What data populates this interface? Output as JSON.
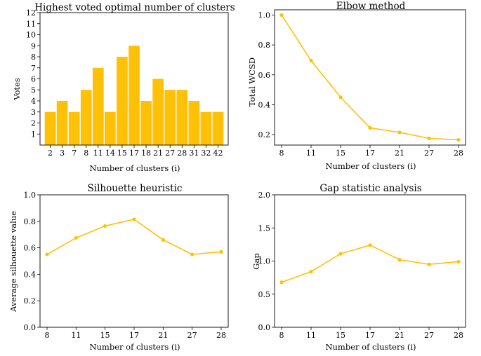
{
  "colors": {
    "accent": "#FFC107",
    "axis": "#000000",
    "background": "#ffffff"
  },
  "chart_data": [
    {
      "type": "bar",
      "title": "Highest voted optimal number of clusters",
      "xlabel": "Number of clusters (i)",
      "ylabel": "Votes",
      "categories": [
        "2",
        "3",
        "7",
        "8",
        "11",
        "14",
        "15",
        "17",
        "18",
        "21",
        "27",
        "28",
        "31",
        "32",
        "42"
      ],
      "values": [
        3,
        4,
        3,
        5,
        7,
        3,
        8,
        9,
        4,
        6,
        5,
        5,
        4,
        3,
        3
      ],
      "ylim": [
        0,
        12
      ],
      "yticks": [
        1,
        2,
        3,
        4,
        5,
        6,
        7,
        8,
        9,
        10,
        11,
        12
      ],
      "grid": false,
      "color": "#FFC107"
    },
    {
      "type": "line",
      "title": "Elbow method",
      "xlabel": "Number of clusters (i)",
      "ylabel": "Total WCSD",
      "categories": [
        "8",
        "11",
        "15",
        "17",
        "21",
        "27",
        "28"
      ],
      "values": [
        1.0,
        0.695,
        0.45,
        0.245,
        0.215,
        0.175,
        0.165
      ],
      "ylim": [
        0.13,
        1.035
      ],
      "yticks": [
        "0.2",
        "0.4",
        "0.6",
        "0.8",
        "1.0"
      ],
      "grid": false,
      "color": "#FFC107"
    },
    {
      "type": "line",
      "title": "Silhouette heuristic",
      "xlabel": "Number of clusters (i)",
      "ylabel": "Average silhouette value",
      "categories": [
        "8",
        "11",
        "15",
        "17",
        "21",
        "27",
        "28"
      ],
      "values": [
        0.55,
        0.675,
        0.765,
        0.815,
        0.66,
        0.55,
        0.57
      ],
      "ylim": [
        0,
        1.0
      ],
      "yticks": [
        "0.0",
        "0.2",
        "0.4",
        "0.6",
        "0.8",
        "1.0"
      ],
      "grid": false,
      "color": "#FFC107"
    },
    {
      "type": "line",
      "title": "Gap statistic analysis",
      "xlabel": "Number of clusters (i)",
      "ylabel": "Gap",
      "categories": [
        "8",
        "11",
        "15",
        "17",
        "21",
        "27",
        "28"
      ],
      "values": [
        0.68,
        0.84,
        1.11,
        1.24,
        1.02,
        0.95,
        0.99
      ],
      "ylim": [
        0,
        2.0
      ],
      "yticks": [
        "0.0",
        "0.5",
        "1.0",
        "1.5",
        "2.0"
      ],
      "grid": false,
      "color": "#FFC107"
    }
  ]
}
